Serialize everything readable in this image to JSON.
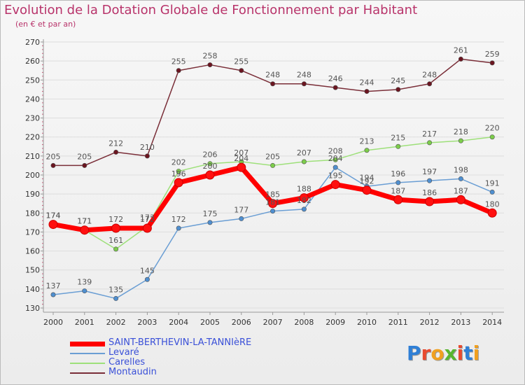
{
  "header": {
    "title": "Evolution de la Dotation Globale de Fonctionnement par Habitant",
    "subtitle": "(en € et par an)"
  },
  "colors": {
    "axis": "#999999",
    "grid": "#dddddd",
    "tick_text": "#333333",
    "data_label": "#555555"
  },
  "chart_data": {
    "type": "line",
    "title": "Evolution de la Dotation Globale de Fonctionnement par Habitant",
    "subtitle": "(en € et par an)",
    "xlabel": "",
    "ylabel": "",
    "ylim": [
      130,
      270
    ],
    "y_ticks": [
      130,
      140,
      150,
      160,
      170,
      180,
      190,
      200,
      210,
      220,
      230,
      240,
      250,
      260,
      270
    ],
    "grid": true,
    "legend_position": "bottom-left",
    "categories": [
      "2000",
      "2001",
      "2002",
      "2003",
      "2004",
      "2005",
      "2006",
      "2007",
      "2008",
      "2009",
      "2010",
      "2011",
      "2012",
      "2013",
      "2014"
    ],
    "series": [
      {
        "name": "Montaudin",
        "color": "#7a2e38",
        "marker": "#6b1520",
        "values": [
          205,
          205,
          212,
          210,
          255,
          258,
          255,
          248,
          248,
          246,
          244,
          245,
          248,
          261,
          259
        ]
      },
      {
        "name": "Levaré",
        "color": "#6a9ed4",
        "marker": "#4f8fd0",
        "values": [
          137,
          139,
          135,
          145,
          172,
          175,
          177,
          181,
          182,
          204,
          194,
          196,
          197,
          198,
          191
        ]
      },
      {
        "name": "Carelles",
        "color": "#9ee07a",
        "marker": "#7ccd4a",
        "values": [
          174,
          171,
          161,
          173,
          202,
          206,
          207,
          205,
          207,
          208,
          213,
          215,
          217,
          218,
          220
        ]
      },
      {
        "name": "SAINT-BERTHEVIN-LA-TANNIèRE",
        "color": "#ff0000",
        "marker": "#ff1010",
        "values": [
          174,
          171,
          172,
          172,
          196,
          200,
          204,
          185,
          188,
          195,
          192,
          187,
          186,
          187,
          180
        ]
      }
    ]
  },
  "legend": {
    "items": [
      {
        "label": "SAINT-BERTHEVIN-LA-TANNIèRE",
        "color": "#ff0000",
        "width": 7
      },
      {
        "label": "Levaré",
        "color": "#6a9ed4",
        "width": 1.5
      },
      {
        "label": "Carelles",
        "color": "#9ee07a",
        "width": 1.5
      },
      {
        "label": "Montaudin",
        "color": "#7a2e38",
        "width": 1.5
      }
    ]
  },
  "logo": {
    "letters": [
      "P",
      "r",
      "o",
      "x",
      "i",
      "t",
      "i"
    ],
    "colors": [
      "#2f7fd6",
      "#e84a2f",
      "#f0a020",
      "#58b52f",
      "#e84a2f",
      "#2f7fd6",
      "#f0a020"
    ]
  }
}
